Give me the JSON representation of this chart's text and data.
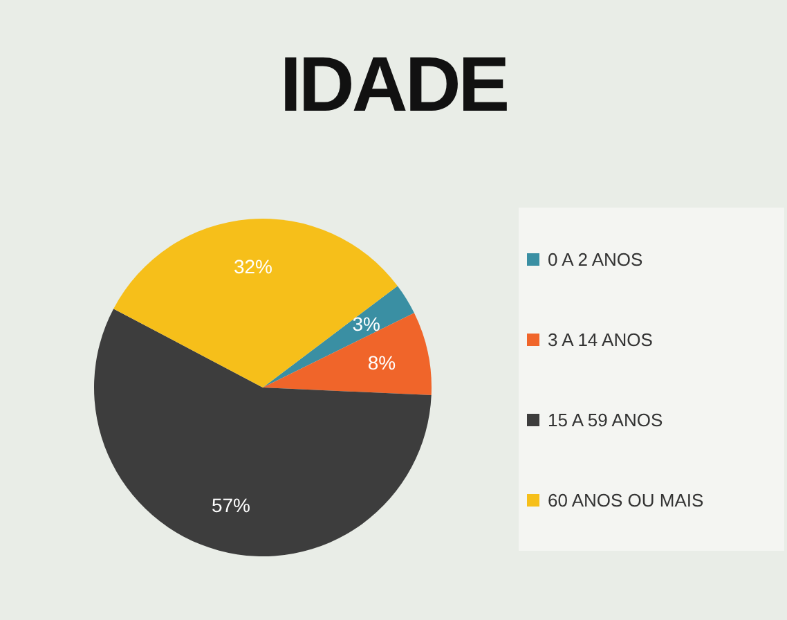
{
  "chart_data": {
    "type": "pie",
    "title": "IDADE",
    "categories": [
      "0 A 2 ANOS",
      "3 A 14 ANOS",
      "15 A 59 ANOS",
      "60 ANOS OU MAIS"
    ],
    "values": [
      3,
      8,
      57,
      32
    ],
    "value_labels": [
      "3%",
      "8%",
      "57%",
      "32%"
    ],
    "colors": [
      "#3a8fa3",
      "#f0652a",
      "#3d3d3d",
      "#f6bf1a"
    ],
    "legend": "right"
  }
}
